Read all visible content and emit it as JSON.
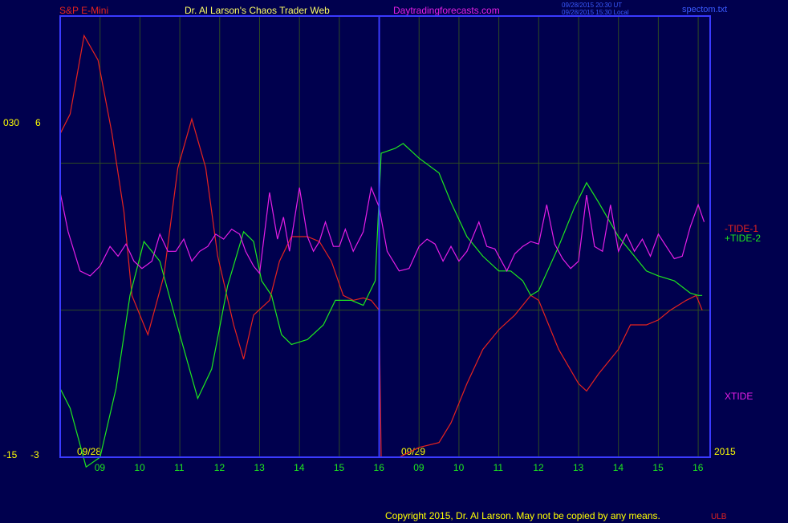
{
  "header": {
    "instrument": "S&P E-Mini",
    "title": "Dr. Al Larson's Chaos Trader Web",
    "site": "Daytradingforecasts.com",
    "stamp_line1": "09/28/2015 20:30 UT",
    "stamp_line2": "09/28/2015 15:30 Local",
    "file": "spectom.txt"
  },
  "footer": {
    "copyright": "Copyright 2015, Dr. Al Larson. May not be copied by any means.",
    "mark": "ULB"
  },
  "colors": {
    "background": "#00004e",
    "frame": "#3a3aff",
    "grid": "#2d4a24",
    "tide1": "#e8231e",
    "tide2": "#1ee81e",
    "xtide": "#e61ee6",
    "hour_labels": "#1ee81e",
    "axis_labels": "#ffff00"
  },
  "chart_data": {
    "type": "line",
    "title": "",
    "x_date_labels": [
      "09/28",
      "09/29"
    ],
    "x_tick_labels": [
      "09",
      "10",
      "11",
      "12",
      "13",
      "14",
      "15",
      "16",
      "09",
      "10",
      "11",
      "12",
      "13",
      "14",
      "15",
      "16"
    ],
    "year_label": "2015",
    "y_left_labels": {
      "top": "030",
      "bottom": "-15"
    },
    "y_right_labels": {
      "top": "6",
      "bottom": "-3"
    },
    "xlim": [
      0,
      16.3
    ],
    "ylim": [
      -3,
      6
    ],
    "grid": true,
    "series": [
      {
        "name": "-TIDE-1",
        "points": [
          [
            0,
            3.6
          ],
          [
            0.25,
            4.0
          ],
          [
            0.6,
            5.6
          ],
          [
            0.95,
            5.1
          ],
          [
            1.3,
            3.6
          ],
          [
            1.6,
            2.0
          ],
          [
            1.8,
            0.3
          ],
          [
            2.2,
            -0.5
          ],
          [
            2.6,
            0.7
          ],
          [
            2.95,
            2.9
          ],
          [
            3.3,
            3.9
          ],
          [
            3.65,
            2.9
          ],
          [
            3.95,
            1.1
          ],
          [
            4.35,
            -0.3
          ],
          [
            4.6,
            -1.0
          ],
          [
            4.85,
            -0.1
          ],
          [
            5.05,
            0.05
          ],
          [
            5.25,
            0.2
          ],
          [
            5.5,
            1.0
          ],
          [
            5.8,
            1.5
          ],
          [
            6.2,
            1.5
          ],
          [
            6.5,
            1.4
          ],
          [
            6.8,
            1.0
          ],
          [
            7.1,
            0.3
          ],
          [
            7.35,
            0.2
          ],
          [
            7.6,
            0.25
          ],
          [
            7.8,
            0.2
          ],
          [
            8.0,
            0.0
          ],
          [
            8.05,
            -3.0
          ],
          [
            8.5,
            -3.0
          ],
          [
            9.0,
            -2.8
          ],
          [
            9.5,
            -2.7
          ],
          [
            9.8,
            -2.3
          ],
          [
            10.2,
            -1.5
          ],
          [
            10.6,
            -0.8
          ],
          [
            11.0,
            -0.4
          ],
          [
            11.4,
            -0.1
          ],
          [
            11.8,
            0.3
          ],
          [
            12.0,
            0.2
          ],
          [
            12.5,
            -0.8
          ],
          [
            13.0,
            -1.5
          ],
          [
            13.2,
            -1.65
          ],
          [
            13.5,
            -1.3
          ],
          [
            14.0,
            -0.8
          ],
          [
            14.3,
            -0.3
          ],
          [
            14.7,
            -0.3
          ],
          [
            15.0,
            -0.2
          ],
          [
            15.3,
            0.0
          ],
          [
            15.7,
            0.2
          ],
          [
            15.95,
            0.3
          ],
          [
            16.1,
            0.0
          ]
        ]
      },
      {
        "name": "+TIDE-2",
        "points": [
          [
            0,
            -1.6
          ],
          [
            0.25,
            -2.0
          ],
          [
            0.65,
            -3.2
          ],
          [
            1.0,
            -3.0
          ],
          [
            1.4,
            -1.6
          ],
          [
            1.75,
            0.3
          ],
          [
            2.1,
            1.4
          ],
          [
            2.5,
            1.0
          ],
          [
            3.0,
            -0.5
          ],
          [
            3.45,
            -1.8
          ],
          [
            3.8,
            -1.2
          ],
          [
            4.2,
            0.5
          ],
          [
            4.6,
            1.6
          ],
          [
            4.85,
            1.4
          ],
          [
            5.05,
            0.6
          ],
          [
            5.3,
            0.3
          ],
          [
            5.55,
            -0.5
          ],
          [
            5.8,
            -0.7
          ],
          [
            6.2,
            -0.6
          ],
          [
            6.6,
            -0.3
          ],
          [
            6.9,
            0.2
          ],
          [
            7.3,
            0.2
          ],
          [
            7.6,
            0.1
          ],
          [
            7.9,
            0.6
          ],
          [
            8.05,
            3.2
          ],
          [
            8.4,
            3.3
          ],
          [
            8.6,
            3.4
          ],
          [
            9.0,
            3.1
          ],
          [
            9.5,
            2.8
          ],
          [
            9.8,
            2.2
          ],
          [
            10.2,
            1.5
          ],
          [
            10.6,
            1.1
          ],
          [
            11.0,
            0.8
          ],
          [
            11.3,
            0.8
          ],
          [
            11.6,
            0.6
          ],
          [
            11.8,
            0.3
          ],
          [
            12.0,
            0.4
          ],
          [
            12.5,
            1.3
          ],
          [
            12.9,
            2.1
          ],
          [
            13.2,
            2.6
          ],
          [
            13.5,
            2.2
          ],
          [
            14.0,
            1.5
          ],
          [
            14.3,
            1.2
          ],
          [
            14.7,
            0.8
          ],
          [
            15.0,
            0.7
          ],
          [
            15.4,
            0.6
          ],
          [
            15.8,
            0.35
          ],
          [
            16.0,
            0.3
          ],
          [
            16.1,
            0.3
          ]
        ]
      },
      {
        "name": "XTIDE",
        "points": [
          [
            0,
            2.4
          ],
          [
            0.2,
            1.6
          ],
          [
            0.5,
            0.8
          ],
          [
            0.75,
            0.7
          ],
          [
            1.0,
            0.9
          ],
          [
            1.25,
            1.3
          ],
          [
            1.45,
            1.1
          ],
          [
            1.65,
            1.35
          ],
          [
            1.85,
            1.0
          ],
          [
            2.05,
            0.85
          ],
          [
            2.3,
            1.0
          ],
          [
            2.5,
            1.55
          ],
          [
            2.7,
            1.2
          ],
          [
            2.9,
            1.2
          ],
          [
            3.1,
            1.45
          ],
          [
            3.3,
            1.0
          ],
          [
            3.5,
            1.2
          ],
          [
            3.7,
            1.3
          ],
          [
            3.9,
            1.55
          ],
          [
            4.1,
            1.45
          ],
          [
            4.3,
            1.65
          ],
          [
            4.5,
            1.55
          ],
          [
            4.65,
            1.2
          ],
          [
            4.85,
            0.9
          ],
          [
            5.0,
            0.75
          ],
          [
            5.25,
            2.4
          ],
          [
            5.45,
            1.45
          ],
          [
            5.6,
            1.9
          ],
          [
            5.75,
            1.2
          ],
          [
            6.0,
            2.5
          ],
          [
            6.2,
            1.5
          ],
          [
            6.35,
            1.2
          ],
          [
            6.5,
            1.4
          ],
          [
            6.65,
            1.8
          ],
          [
            6.85,
            1.3
          ],
          [
            7.0,
            1.3
          ],
          [
            7.15,
            1.65
          ],
          [
            7.35,
            1.2
          ],
          [
            7.6,
            1.6
          ],
          [
            7.8,
            2.5
          ],
          [
            8.0,
            2.1
          ],
          [
            8.2,
            1.2
          ],
          [
            8.5,
            0.8
          ],
          [
            8.75,
            0.85
          ],
          [
            9.0,
            1.3
          ],
          [
            9.2,
            1.45
          ],
          [
            9.4,
            1.35
          ],
          [
            9.6,
            1.0
          ],
          [
            9.8,
            1.3
          ],
          [
            10.0,
            1.0
          ],
          [
            10.2,
            1.2
          ],
          [
            10.5,
            1.8
          ],
          [
            10.7,
            1.3
          ],
          [
            10.9,
            1.25
          ],
          [
            11.2,
            0.8
          ],
          [
            11.4,
            1.15
          ],
          [
            11.6,
            1.3
          ],
          [
            11.8,
            1.4
          ],
          [
            12.0,
            1.35
          ],
          [
            12.2,
            2.15
          ],
          [
            12.4,
            1.35
          ],
          [
            12.6,
            1.05
          ],
          [
            12.8,
            0.85
          ],
          [
            13.0,
            1.0
          ],
          [
            13.2,
            2.35
          ],
          [
            13.4,
            1.3
          ],
          [
            13.6,
            1.2
          ],
          [
            13.8,
            2.15
          ],
          [
            14.0,
            1.2
          ],
          [
            14.2,
            1.55
          ],
          [
            14.4,
            1.2
          ],
          [
            14.6,
            1.45
          ],
          [
            14.8,
            1.1
          ],
          [
            15.0,
            1.55
          ],
          [
            15.2,
            1.3
          ],
          [
            15.4,
            1.05
          ],
          [
            15.6,
            1.1
          ],
          [
            15.8,
            1.7
          ],
          [
            16.0,
            2.15
          ],
          [
            16.15,
            1.8
          ]
        ]
      }
    ],
    "labels": [
      "-TIDE-1",
      "+TIDE-2",
      "XTIDE"
    ]
  }
}
